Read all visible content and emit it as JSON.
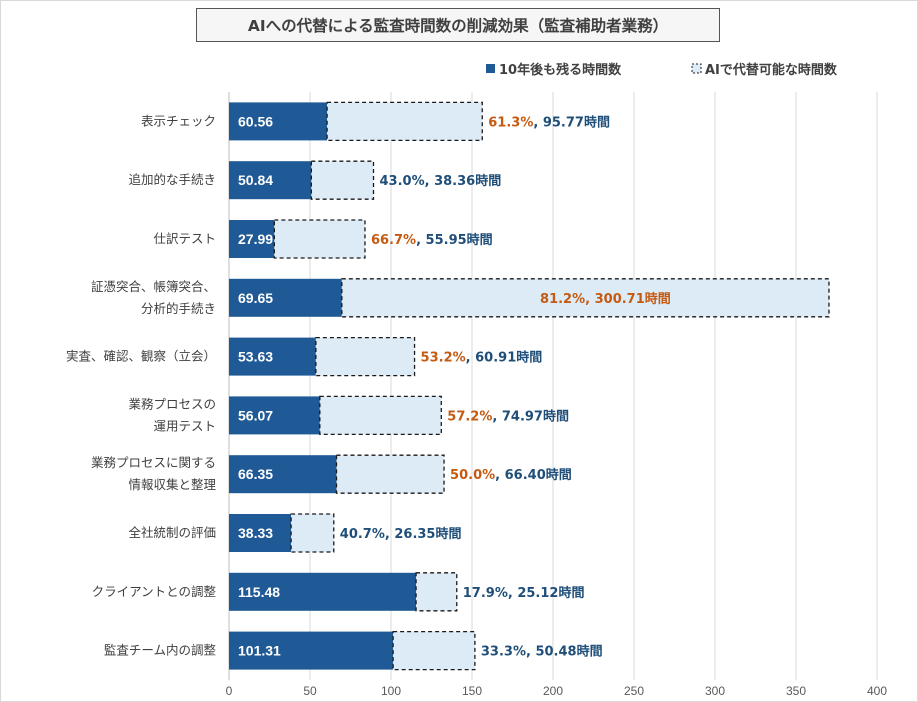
{
  "chart_data": {
    "type": "bar",
    "orientation": "horizontal",
    "stacked": true,
    "title": "AIへの代替による監査時間数の削減効果（監査補助者業務）",
    "categories": [
      [
        "表示チェック"
      ],
      [
        "追加的な手続き"
      ],
      [
        "仕訳テスト"
      ],
      [
        "証憑突合、帳簿突合、",
        "分析的手続き"
      ],
      [
        "実査、確認、観察（立会）"
      ],
      [
        "業務プロセスの",
        "運用テスト"
      ],
      [
        "業務プロセスに関する",
        "情報収集と整理"
      ],
      [
        "全社統制の評価"
      ],
      [
        "クライアントとの調整"
      ],
      [
        "監査チーム内の調整"
      ]
    ],
    "series": [
      {
        "name": "10年後も残る時間数",
        "color": "#1f5a96",
        "values": [
          60.56,
          50.84,
          27.99,
          69.65,
          53.63,
          56.07,
          66.35,
          38.33,
          115.48,
          101.31
        ]
      },
      {
        "name": "AIで代替可能な時間数",
        "color": "#ddebf7",
        "style": "dashed",
        "values": [
          95.77,
          38.36,
          55.95,
          300.71,
          60.91,
          74.97,
          66.4,
          26.35,
          25.12,
          50.48
        ]
      }
    ],
    "value_labels": [
      "60.56",
      "50.84",
      "27.99",
      "69.65",
      "53.63",
      "56.07",
      "66.35",
      "38.33",
      "115.48",
      "101.31"
    ],
    "annotations": [
      {
        "pct": "61.3%",
        "hours": "95.77時間",
        "highlight": true
      },
      {
        "pct": "43.0%",
        "hours": "38.36時間",
        "highlight": false
      },
      {
        "pct": "66.7%",
        "hours": "55.95時間",
        "highlight": true
      },
      {
        "pct": "81.2%",
        "hours": "300.71時間",
        "highlight": true,
        "inside": true
      },
      {
        "pct": "53.2%",
        "hours": "60.91時間",
        "highlight": true
      },
      {
        "pct": "57.2%",
        "hours": "74.97時間",
        "highlight": true
      },
      {
        "pct": "50.0%",
        "hours": "66.40時間",
        "highlight": true
      },
      {
        "pct": "40.7%",
        "hours": "26.35時間",
        "highlight": false
      },
      {
        "pct": "17.9%",
        "hours": "25.12時間",
        "highlight": false
      },
      {
        "pct": "33.3%",
        "hours": "50.48時間",
        "highlight": false
      }
    ],
    "annotation_colors": {
      "highlight": "#c55a11",
      "normal": "#1f4e79"
    },
    "xlim": [
      0,
      400
    ],
    "xticks": [
      0,
      50,
      100,
      150,
      200,
      250,
      300,
      350,
      400
    ],
    "grid": true,
    "legend_position": "top-right"
  }
}
